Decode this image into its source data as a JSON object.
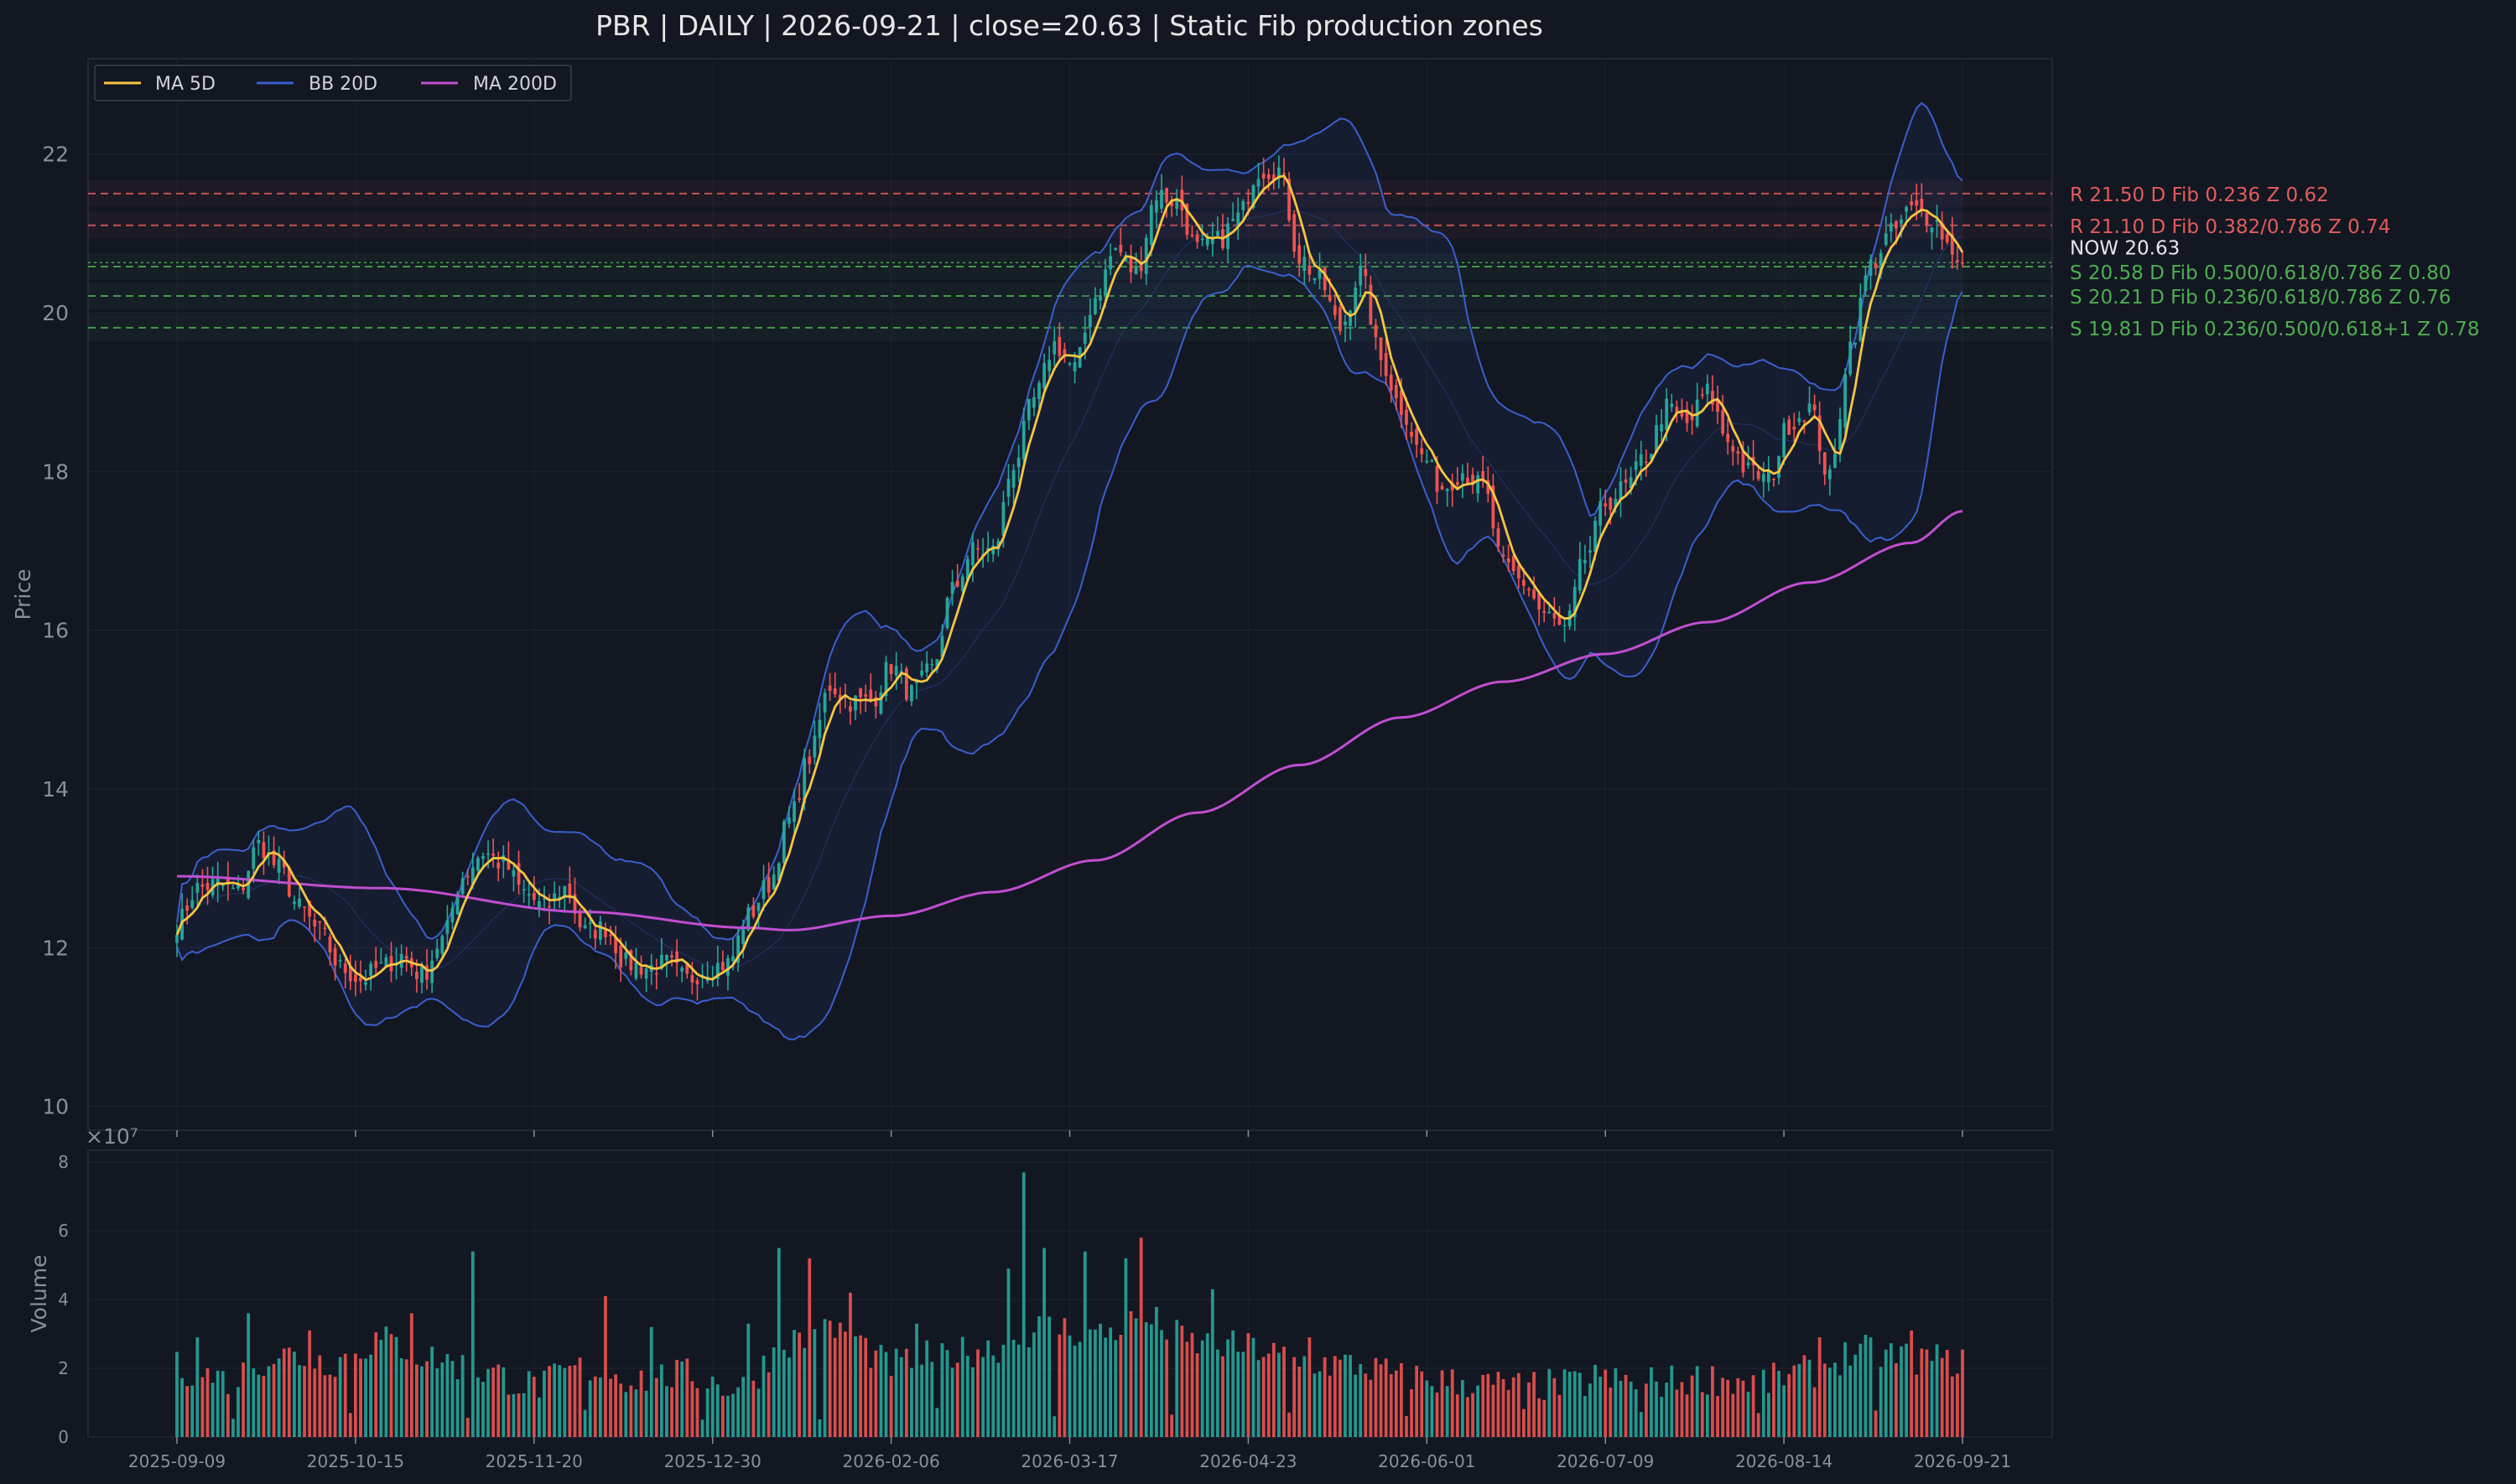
{
  "chart_data": {
    "type": "candlestick",
    "title": "PBR  |  DAILY  |  2026-09-21  |  close=20.63  |  Static Fib production zones",
    "ylabel": "Price",
    "volume_ylabel": "Volume",
    "volume_scale_label": "×10⁷",
    "ylim": [
      9.7,
      23.2
    ],
    "yticks": [
      "10",
      "12",
      "14",
      "16",
      "18",
      "20",
      "22"
    ],
    "volume_ylim": [
      0,
      8
    ],
    "volume_yticks": [
      "0",
      "2",
      "4",
      "6",
      "8"
    ],
    "xtick_labels": [
      "2025-09-09",
      "2025-10-15",
      "2025-11-20",
      "2025-12-30",
      "2026-02-06",
      "2026-03-17",
      "2026-04-23",
      "2026-06-01",
      "2026-07-09",
      "2026-08-14",
      "2026-09-21"
    ],
    "legend": {
      "placement": "top-left",
      "items": [
        {
          "label": "MA 5D",
          "color": "#f5c542"
        },
        {
          "label": "BB 20D",
          "color": "#3a5fcd"
        },
        {
          "label": "MA 200D",
          "color": "#c04fd0"
        }
      ]
    },
    "close": 20.63,
    "now_label": "NOW 20.63",
    "zones": [
      {
        "type": "R",
        "price": 21.5,
        "label": "R 21.50  D  Fib 0.236  Z 0.62",
        "color": "#e25c5c"
      },
      {
        "type": "R",
        "price": 21.1,
        "label": "R 21.10  D  Fib 0.382/0.786  Z 0.74",
        "color": "#e25c5c"
      },
      {
        "type": "S",
        "price": 20.58,
        "label": "S 20.58  D  Fib 0.500/0.618/0.786  Z 0.80",
        "color": "#4caf50"
      },
      {
        "type": "S",
        "price": 20.21,
        "label": "S 20.21  D  Fib 0.236/0.618/0.786  Z 0.76",
        "color": "#4caf50"
      },
      {
        "type": "S",
        "price": 19.81,
        "label": "S 19.81  D  Fib 0.236/0.500/0.618+1  Z 0.78",
        "color": "#4caf50"
      }
    ],
    "price_anchors": [
      [
        0,
        12.3
      ],
      [
        4,
        12.75
      ],
      [
        8,
        12.8
      ],
      [
        12,
        12.7
      ],
      [
        16,
        13.3
      ],
      [
        20,
        13.0
      ],
      [
        24,
        12.5
      ],
      [
        28,
        12.2
      ],
      [
        32,
        11.75
      ],
      [
        36,
        11.6
      ],
      [
        40,
        11.75
      ],
      [
        44,
        11.9
      ],
      [
        48,
        11.65
      ],
      [
        52,
        12.1
      ],
      [
        56,
        12.9
      ],
      [
        60,
        13.2
      ],
      [
        64,
        13.05
      ],
      [
        68,
        12.7
      ],
      [
        72,
        12.5
      ],
      [
        76,
        12.75
      ],
      [
        80,
        12.2
      ],
      [
        84,
        12.25
      ],
      [
        88,
        11.8
      ],
      [
        92,
        11.75
      ],
      [
        96,
        11.8
      ],
      [
        100,
        11.6
      ],
      [
        104,
        11.75
      ],
      [
        108,
        11.8
      ],
      [
        112,
        12.4
      ],
      [
        116,
        12.8
      ],
      [
        120,
        13.6
      ],
      [
        124,
        14.4
      ],
      [
        128,
        15.3
      ],
      [
        132,
        15.1
      ],
      [
        136,
        15.1
      ],
      [
        140,
        15.55
      ],
      [
        144,
        15.2
      ],
      [
        148,
        15.5
      ],
      [
        152,
        16.5
      ],
      [
        156,
        17.0
      ],
      [
        160,
        17.0
      ],
      [
        164,
        18.1
      ],
      [
        168,
        18.9
      ],
      [
        172,
        19.6
      ],
      [
        176,
        19.3
      ],
      [
        180,
        20.2
      ],
      [
        184,
        20.8
      ],
      [
        188,
        20.5
      ],
      [
        192,
        21.5
      ],
      [
        196,
        21.4
      ],
      [
        200,
        20.8
      ],
      [
        204,
        20.9
      ],
      [
        208,
        21.2
      ],
      [
        212,
        21.8
      ],
      [
        216,
        21.8
      ],
      [
        220,
        20.7
      ],
      [
        224,
        20.4
      ],
      [
        228,
        19.8
      ],
      [
        232,
        20.5
      ],
      [
        236,
        19.4
      ],
      [
        240,
        18.8
      ],
      [
        244,
        18.2
      ],
      [
        248,
        17.8
      ],
      [
        252,
        18.0
      ],
      [
        256,
        17.8
      ],
      [
        260,
        16.8
      ],
      [
        264,
        16.6
      ],
      [
        268,
        16.2
      ],
      [
        272,
        16.0
      ],
      [
        276,
        16.9
      ],
      [
        280,
        17.6
      ],
      [
        284,
        17.8
      ],
      [
        288,
        18.2
      ],
      [
        292,
        18.8
      ],
      [
        296,
        18.6
      ],
      [
        300,
        19.0
      ],
      [
        304,
        18.4
      ],
      [
        308,
        18.0
      ],
      [
        312,
        17.9
      ],
      [
        316,
        18.6
      ],
      [
        320,
        18.8
      ],
      [
        324,
        17.9
      ],
      [
        328,
        19.6
      ],
      [
        332,
        20.6
      ],
      [
        336,
        21.0
      ],
      [
        340,
        21.3
      ],
      [
        344,
        21.2
      ],
      [
        348,
        20.8
      ],
      [
        350,
        20.63
      ]
    ],
    "ma200_anchors": [
      [
        0,
        12.9
      ],
      [
        40,
        12.75
      ],
      [
        80,
        12.45
      ],
      [
        112,
        12.25
      ],
      [
        120,
        12.22
      ],
      [
        140,
        12.4
      ],
      [
        160,
        12.7
      ],
      [
        180,
        13.1
      ],
      [
        200,
        13.7
      ],
      [
        220,
        14.3
      ],
      [
        240,
        14.9
      ],
      [
        260,
        15.35
      ],
      [
        280,
        15.7
      ],
      [
        300,
        16.1
      ],
      [
        320,
        16.6
      ],
      [
        340,
        17.1
      ],
      [
        350,
        17.5
      ]
    ],
    "volume_anchors": [
      [
        0,
        2.0
      ],
      [
        10,
        1.7
      ],
      [
        20,
        2.4
      ],
      [
        30,
        2.2
      ],
      [
        40,
        2.8
      ],
      [
        50,
        2.3
      ],
      [
        60,
        1.9
      ],
      [
        70,
        1.5
      ],
      [
        80,
        2.0
      ],
      [
        90,
        1.7
      ],
      [
        100,
        1.8
      ],
      [
        110,
        1.4
      ],
      [
        120,
        2.8
      ],
      [
        130,
        3.1
      ],
      [
        140,
        2.1
      ],
      [
        150,
        2.4
      ],
      [
        160,
        2.6
      ],
      [
        170,
        3.2
      ],
      [
        180,
        3.0
      ],
      [
        190,
        3.4
      ],
      [
        200,
        2.7
      ],
      [
        210,
        2.6
      ],
      [
        220,
        2.2
      ],
      [
        230,
        2.1
      ],
      [
        240,
        1.8
      ],
      [
        250,
        1.6
      ],
      [
        260,
        1.5
      ],
      [
        270,
        1.5
      ],
      [
        280,
        1.6
      ],
      [
        290,
        1.6
      ],
      [
        300,
        1.7
      ],
      [
        310,
        1.6
      ],
      [
        320,
        1.9
      ],
      [
        330,
        2.5
      ],
      [
        340,
        2.3
      ],
      [
        350,
        2.2
      ]
    ],
    "volume_spikes": [
      [
        4,
        2.9
      ],
      [
        14,
        3.6
      ],
      [
        26,
        3.1
      ],
      [
        46,
        3.6
      ],
      [
        58,
        5.4
      ],
      [
        84,
        4.1
      ],
      [
        93,
        3.2
      ],
      [
        112,
        3.3
      ],
      [
        118,
        5.5
      ],
      [
        124,
        5.2
      ],
      [
        132,
        4.2
      ],
      [
        145,
        3.3
      ],
      [
        163,
        4.9
      ],
      [
        166,
        7.7
      ],
      [
        170,
        5.5
      ],
      [
        178,
        5.4
      ],
      [
        186,
        5.2
      ],
      [
        189,
        5.8
      ],
      [
        195,
        5.2
      ],
      [
        203,
        4.3
      ],
      [
        222,
        2.9
      ],
      [
        264,
        2.4
      ],
      [
        278,
        2.1
      ],
      [
        310,
        2.9
      ],
      [
        322,
        2.9
      ],
      [
        332,
        2.9
      ],
      [
        340,
        3.1
      ],
      [
        346,
        2.3
      ]
    ]
  }
}
